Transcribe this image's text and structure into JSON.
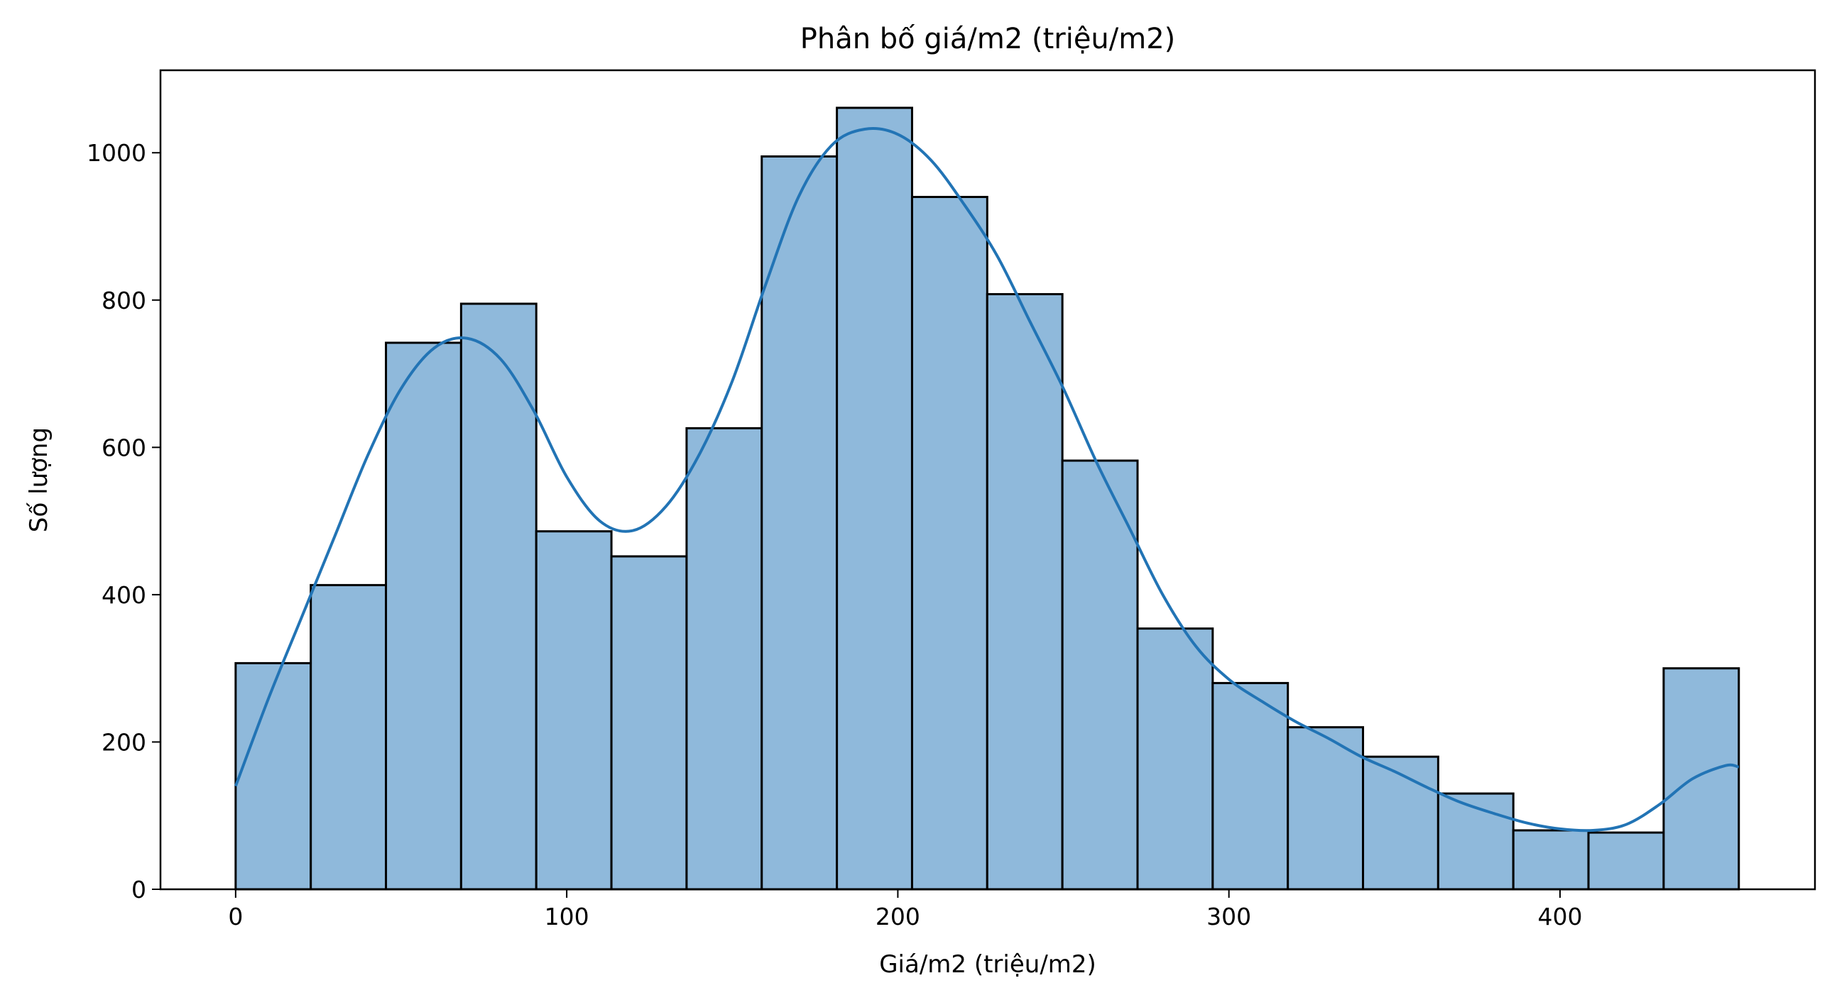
{
  "chart_data": {
    "type": "bar",
    "title": "Phân bố giá/m2 (triệu/m2)",
    "xlabel": "Giá/m2 (triệu/m2)",
    "ylabel": "Số lượng",
    "xlim": [
      -22.7,
      477
    ],
    "ylim": [
      0,
      1112
    ],
    "x_ticks": [
      0,
      100,
      200,
      300,
      400
    ],
    "y_ticks": [
      0,
      200,
      400,
      600,
      800,
      1000
    ],
    "bin_edges": [
      0,
      22.7,
      45.4,
      68.1,
      90.8,
      113.5,
      136.2,
      158.9,
      181.6,
      204.3,
      227,
      249.7,
      272.4,
      295.1,
      317.8,
      340.5,
      363.2,
      385.9,
      408.6,
      431.3,
      454
    ],
    "values": [
      307,
      413,
      742,
      795,
      486,
      452,
      626,
      995,
      1061,
      940,
      808,
      582,
      354,
      280,
      220,
      180,
      130,
      80,
      77,
      300
    ],
    "kde": {
      "x": [
        0,
        10,
        20,
        30,
        40,
        50,
        60,
        70,
        80,
        90,
        100,
        110,
        120,
        130,
        140,
        150,
        160,
        170,
        180,
        190,
        200,
        210,
        220,
        230,
        240,
        250,
        260,
        270,
        280,
        290,
        300,
        310,
        320,
        330,
        340,
        350,
        360,
        370,
        380,
        390,
        400,
        410,
        420,
        430,
        440,
        450,
        454
      ],
      "y": [
        140,
        260,
        370,
        480,
        590,
        680,
        735,
        748,
        720,
        650,
        560,
        500,
        487,
        520,
        590,
        690,
        820,
        940,
        1010,
        1032,
        1025,
        990,
        930,
        860,
        770,
        680,
        580,
        490,
        400,
        330,
        285,
        255,
        228,
        205,
        180,
        160,
        138,
        118,
        103,
        90,
        82,
        80,
        88,
        115,
        150,
        168,
        166
      ]
    },
    "grid": false,
    "legend": "none",
    "colors": {
      "bar_fill": "#8fb9db",
      "bar_edge": "#000000",
      "kde_line": "#2274b5"
    }
  }
}
